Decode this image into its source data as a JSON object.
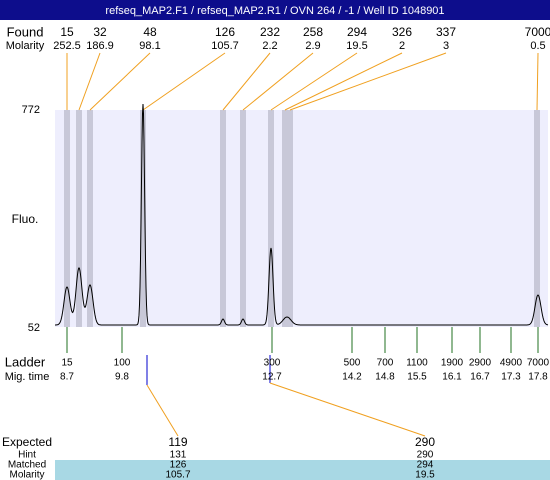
{
  "title": "refseq_MAP2.F1 / refseq_MAP2.R1 / OVN 264 / -1 / Well ID 1048901",
  "found": {
    "label": "Found",
    "values": [
      15,
      32,
      48,
      126,
      232,
      258,
      294,
      326,
      337,
      7000
    ]
  },
  "molarity": {
    "label": "Molarity",
    "values": [
      252.5,
      186.9,
      98.1,
      105.7,
      2.2,
      2.9,
      19.5,
      2,
      3,
      0.5
    ]
  },
  "plot": {
    "y_label": "Fluo.",
    "y_max": 772,
    "y_min": 52
  },
  "ladder": {
    "label": "Ladder",
    "values": [
      15,
      100,
      300,
      500,
      700,
      1100,
      1900,
      2900,
      4900,
      7000
    ]
  },
  "mig_time": {
    "label": "Mig. time",
    "values": [
      8.7,
      9.8,
      12.7,
      14.2,
      14.8,
      15.5,
      16.1,
      16.7,
      17.3,
      17.8
    ]
  },
  "expected": {
    "rows": [
      {
        "label": "Expected",
        "values": [
          119,
          290
        ]
      },
      {
        "label": "Hint",
        "values": [
          131,
          290
        ]
      },
      {
        "label": "Matched",
        "values": [
          126,
          294
        ]
      },
      {
        "label": "Molarity",
        "values": [
          105.7,
          19.5
        ]
      }
    ]
  }
}
